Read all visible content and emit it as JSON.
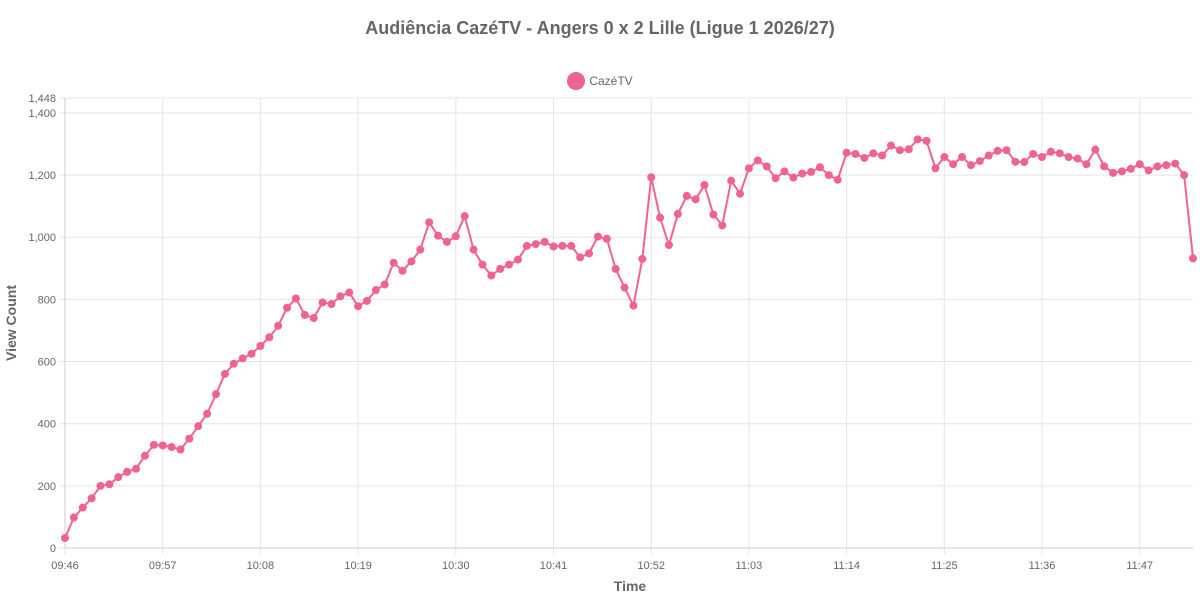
{
  "chart_data": {
    "type": "line",
    "title": "Audiência CazéTV - Angers 0 x 2 Lille (Ligue 1 2026/27)",
    "xlabel": "Time",
    "ylabel": "View Count",
    "ylim": [
      0,
      1448
    ],
    "y_ticks": [
      "0",
      "200",
      "400",
      "600",
      "800",
      "1,000",
      "1,200",
      "1,400",
      "1,448"
    ],
    "y_tick_values": [
      0,
      200,
      400,
      600,
      800,
      1000,
      1200,
      1400,
      1448
    ],
    "x_ticks": [
      "09:46",
      "09:57",
      "10:08",
      "10:19",
      "10:30",
      "10:41",
      "10:52",
      "11:03",
      "11:14",
      "11:25",
      "11:36",
      "11:47"
    ],
    "grid": true,
    "legend_position": "top-center",
    "series": [
      {
        "name": "CazéTV",
        "color": "#f06292",
        "x_start": "09:46",
        "x_step_minutes": 1,
        "values": [
          32,
          98,
          130,
          160,
          200,
          205,
          228,
          245,
          255,
          297,
          332,
          330,
          325,
          317,
          352,
          392,
          432,
          495,
          560,
          593,
          610,
          625,
          650,
          678,
          715,
          773,
          803,
          750,
          740,
          790,
          785,
          810,
          822,
          778,
          795,
          830,
          848,
          918,
          892,
          922,
          960,
          1048,
          1005,
          985,
          1003,
          1068,
          960,
          912,
          877,
          898,
          912,
          928,
          972,
          978,
          985,
          970,
          972,
          972,
          935,
          948,
          1002,
          995,
          898,
          838,
          780,
          930,
          1193,
          1063,
          975,
          1075,
          1133,
          1122,
          1168,
          1073,
          1038,
          1182,
          1140,
          1222,
          1247,
          1228,
          1190,
          1212,
          1192,
          1205,
          1210,
          1225,
          1200,
          1185,
          1272,
          1268,
          1255,
          1270,
          1263,
          1295,
          1280,
          1283,
          1315,
          1310,
          1222,
          1258,
          1235,
          1258,
          1232,
          1245,
          1263,
          1278,
          1280,
          1243,
          1242,
          1268,
          1258,
          1275,
          1270,
          1258,
          1253,
          1235,
          1282,
          1228,
          1207,
          1212,
          1220,
          1235,
          1215,
          1228,
          1232,
          1237,
          1200,
          932
        ]
      }
    ]
  }
}
